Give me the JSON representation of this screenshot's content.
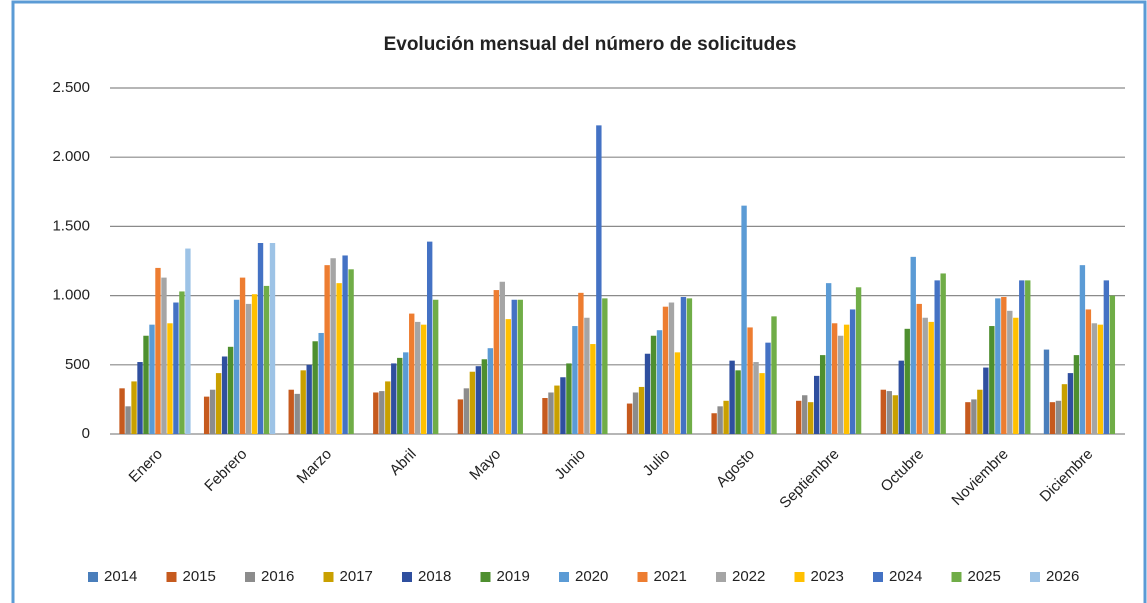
{
  "chart_data": {
    "type": "bar",
    "title": "Evolución mensual del número de solicitudes",
    "categories": [
      "Enero",
      "Febrero",
      "Marzo",
      "Abril",
      "Mayo",
      "Junio",
      "Julio",
      "Agosto",
      "Septiembre",
      "Octubre",
      "Noviembre",
      "Diciembre"
    ],
    "ylim": [
      0,
      2500
    ],
    "yticks": [
      0,
      500,
      {
        "value": 1000,
        "label": "1.000"
      },
      {
        "value": 1500,
        "label": "1.500"
      },
      {
        "value": 2000,
        "label": "2.000"
      },
      {
        "value": 2500,
        "label": "2.500"
      }
    ],
    "grid": true,
    "legend": "bottom",
    "series": [
      {
        "name": "2014",
        "color": "#4a7ebb",
        "values": [
          null,
          null,
          null,
          null,
          null,
          null,
          null,
          null,
          null,
          null,
          null,
          610
        ]
      },
      {
        "name": "2015",
        "color": "#c65a1e",
        "values": [
          330,
          270,
          320,
          300,
          250,
          260,
          220,
          150,
          240,
          320,
          230,
          230
        ]
      },
      {
        "name": "2016",
        "color": "#8c8c8c",
        "values": [
          200,
          320,
          290,
          310,
          330,
          300,
          300,
          200,
          280,
          310,
          250,
          240
        ]
      },
      {
        "name": "2017",
        "color": "#c9a000",
        "values": [
          380,
          440,
          460,
          380,
          450,
          350,
          340,
          240,
          230,
          280,
          320,
          360
        ]
      },
      {
        "name": "2018",
        "color": "#2f4f9f",
        "values": [
          520,
          560,
          500,
          510,
          490,
          410,
          580,
          530,
          420,
          530,
          480,
          440
        ]
      },
      {
        "name": "2019",
        "color": "#4e8f2f",
        "values": [
          710,
          630,
          670,
          550,
          540,
          510,
          710,
          460,
          570,
          760,
          780,
          570
        ]
      },
      {
        "name": "2020",
        "color": "#5b9bd5",
        "values": [
          790,
          970,
          730,
          590,
          620,
          780,
          750,
          1650,
          1090,
          1280,
          980,
          1220
        ]
      },
      {
        "name": "2021",
        "color": "#ed7d31",
        "values": [
          1200,
          1130,
          1220,
          870,
          1040,
          1020,
          920,
          770,
          800,
          940,
          990,
          900
        ]
      },
      {
        "name": "2022",
        "color": "#a5a5a5",
        "values": [
          1130,
          940,
          1270,
          810,
          1100,
          840,
          950,
          520,
          710,
          840,
          890,
          800
        ]
      },
      {
        "name": "2023",
        "color": "#ffc000",
        "values": [
          800,
          1010,
          1090,
          790,
          830,
          650,
          590,
          440,
          790,
          810,
          840,
          790
        ]
      },
      {
        "name": "2024",
        "color": "#4472c4",
        "values": [
          950,
          1380,
          1290,
          1390,
          970,
          2230,
          990,
          660,
          900,
          1110,
          1110,
          1110
        ]
      },
      {
        "name": "2025",
        "color": "#70ad47",
        "values": [
          1030,
          1070,
          1190,
          970,
          970,
          980,
          980,
          850,
          1060,
          1160,
          1110,
          1000
        ]
      },
      {
        "name": "2026",
        "color": "#9dc3e6",
        "values": [
          1340,
          1380,
          null,
          null,
          null,
          null,
          null,
          null,
          null,
          null,
          null,
          null
        ]
      }
    ]
  }
}
